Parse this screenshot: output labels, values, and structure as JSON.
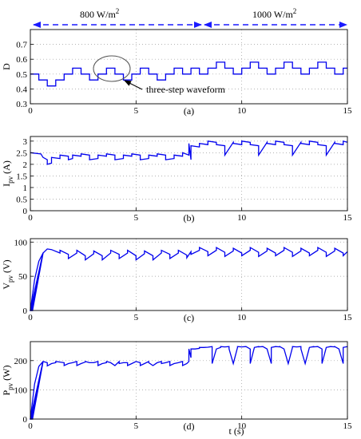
{
  "annotations": {
    "irr1": "800 W/m",
    "irr2": "1000 W/m",
    "sup": "2",
    "wave_note": "three-step waveform"
  },
  "colors": {
    "series": "#0000ee",
    "arrow": "#1a1aff",
    "grid": "#9a9a9a"
  },
  "chart_data": [
    {
      "type": "line",
      "panel": "(a)",
      "ylabel": "D",
      "xlim": [
        0,
        15
      ],
      "ylim": [
        0.3,
        0.8
      ],
      "xticks": [
        "0",
        "5",
        "10",
        "15"
      ],
      "yticks": [
        "0.3",
        "0.4",
        "0.5",
        "0.6",
        "0.7"
      ],
      "grid": true,
      "x": [
        0.0,
        0.4,
        0.4,
        0.8,
        0.8,
        1.2,
        1.2,
        1.6,
        1.6,
        2.0,
        2.0,
        2.4,
        2.4,
        2.8,
        2.8,
        3.2,
        3.2,
        3.6,
        3.6,
        4.0,
        4.0,
        4.4,
        4.4,
        4.8,
        4.8,
        5.2,
        5.2,
        5.6,
        5.6,
        6.0,
        6.0,
        6.4,
        6.4,
        6.8,
        6.8,
        7.2,
        7.2,
        7.6,
        7.6,
        8.0,
        8.0,
        8.4,
        8.4,
        8.8,
        8.8,
        9.2,
        9.2,
        9.6,
        9.6,
        10.0,
        10.0,
        10.4,
        10.4,
        10.8,
        10.8,
        11.2,
        11.2,
        11.6,
        11.6,
        12.0,
        12.0,
        12.4,
        12.4,
        12.8,
        12.8,
        13.2,
        13.2,
        13.6,
        13.6,
        14.0,
        14.0,
        14.4,
        14.4,
        14.8,
        14.8,
        15.0
      ],
      "y": [
        0.5,
        0.5,
        0.46,
        0.46,
        0.42,
        0.42,
        0.46,
        0.46,
        0.5,
        0.5,
        0.54,
        0.54,
        0.5,
        0.5,
        0.46,
        0.46,
        0.5,
        0.5,
        0.54,
        0.54,
        0.5,
        0.5,
        0.46,
        0.46,
        0.5,
        0.5,
        0.54,
        0.54,
        0.5,
        0.5,
        0.46,
        0.46,
        0.5,
        0.5,
        0.54,
        0.54,
        0.5,
        0.5,
        0.54,
        0.54,
        0.5,
        0.5,
        0.54,
        0.54,
        0.58,
        0.58,
        0.54,
        0.54,
        0.5,
        0.5,
        0.54,
        0.54,
        0.58,
        0.58,
        0.54,
        0.54,
        0.5,
        0.5,
        0.54,
        0.54,
        0.58,
        0.58,
        0.54,
        0.54,
        0.5,
        0.5,
        0.54,
        0.54,
        0.58,
        0.58,
        0.54,
        0.54,
        0.5,
        0.5,
        0.54,
        0.54
      ]
    },
    {
      "type": "line",
      "panel": "(b)",
      "ylabel": "I",
      "ylabel_sub": "pv",
      "ylabel_unit": "(A)",
      "xlim": [
        0,
        15
      ],
      "ylim": [
        0,
        3.2
      ],
      "xticks": [
        "0",
        "5",
        "10",
        "15"
      ],
      "yticks": [
        "0",
        "0.5",
        "1",
        "1.5",
        "2",
        "2.5",
        "3"
      ],
      "grid": true,
      "x": [
        0.0,
        0.5,
        0.6,
        0.8,
        0.8,
        1.0,
        1.0,
        1.4,
        1.4,
        1.8,
        1.8,
        2.0,
        2.0,
        2.4,
        2.4,
        2.8,
        2.8,
        3.2,
        3.2,
        3.6,
        3.6,
        4.0,
        4.0,
        4.4,
        4.4,
        4.8,
        4.8,
        5.2,
        5.2,
        5.6,
        5.6,
        6.0,
        6.0,
        6.4,
        6.4,
        6.8,
        6.8,
        7.2,
        7.2,
        7.5,
        7.5,
        7.6,
        7.6,
        8.0,
        8.0,
        8.4,
        8.4,
        8.8,
        8.8,
        9.2,
        9.2,
        9.6,
        9.6,
        10.0,
        10.0,
        10.4,
        10.4,
        10.8,
        10.8,
        11.2,
        11.2,
        11.6,
        11.6,
        12.0,
        12.0,
        12.4,
        12.4,
        12.8,
        12.8,
        13.2,
        13.2,
        13.6,
        13.6,
        14.0,
        14.0,
        14.4,
        14.4,
        14.8,
        14.8,
        15.0
      ],
      "y": [
        2.5,
        2.45,
        2.3,
        2.2,
        2.0,
        2.05,
        2.3,
        2.25,
        2.4,
        2.35,
        2.2,
        2.25,
        2.4,
        2.35,
        2.45,
        2.4,
        2.2,
        2.25,
        2.4,
        2.35,
        2.45,
        2.4,
        2.2,
        2.25,
        2.4,
        2.35,
        2.45,
        2.4,
        2.2,
        2.25,
        2.4,
        2.35,
        2.45,
        2.4,
        2.2,
        2.25,
        2.4,
        2.35,
        2.5,
        2.4,
        2.9,
        2.2,
        2.8,
        2.75,
        2.9,
        2.85,
        3.0,
        2.95,
        2.85,
        2.8,
        2.4,
        2.95,
        2.9,
        2.85,
        3.0,
        2.95,
        2.85,
        2.8,
        2.4,
        2.95,
        2.9,
        2.85,
        3.0,
        2.95,
        2.85,
        2.8,
        2.4,
        2.95,
        2.9,
        2.85,
        3.0,
        2.95,
        2.85,
        2.8,
        2.4,
        2.95,
        2.9,
        2.85,
        3.0,
        2.95
      ]
    },
    {
      "type": "line",
      "panel": "(c)",
      "ylabel": "V",
      "ylabel_sub": "pv",
      "ylabel_unit": "(V)",
      "xlim": [
        0,
        15
      ],
      "ylim": [
        0,
        105
      ],
      "xticks": [
        "0",
        "5",
        "10",
        "15"
      ],
      "yticks": [
        "0",
        "50",
        "100"
      ],
      "grid": true,
      "x": [
        0.0,
        0.2,
        0.4,
        0.6,
        0.8,
        1.0,
        1.4,
        1.4,
        1.8,
        1.8,
        2.2,
        2.2,
        2.6,
        2.6,
        3.0,
        3.0,
        3.4,
        3.4,
        3.8,
        3.8,
        4.2,
        4.2,
        4.6,
        4.6,
        5.0,
        5.0,
        5.4,
        5.4,
        5.8,
        5.8,
        6.2,
        6.2,
        6.6,
        6.6,
        7.0,
        7.0,
        7.4,
        7.4,
        7.6,
        7.6,
        8.0,
        8.0,
        8.4,
        8.4,
        8.8,
        8.8,
        9.2,
        9.2,
        9.6,
        9.6,
        10.0,
        10.0,
        10.4,
        10.4,
        10.8,
        10.8,
        11.2,
        11.2,
        11.6,
        11.6,
        12.0,
        12.0,
        12.4,
        12.4,
        12.8,
        12.8,
        13.2,
        13.2,
        13.6,
        13.6,
        14.0,
        14.0,
        14.4,
        14.4,
        14.8,
        14.8,
        15.0
      ],
      "y": [
        0,
        45,
        72,
        84,
        90,
        89,
        84,
        88,
        82,
        76,
        84,
        88,
        80,
        74,
        83,
        87,
        80,
        74,
        84,
        88,
        82,
        76,
        84,
        88,
        80,
        74,
        83,
        87,
        80,
        74,
        84,
        88,
        82,
        76,
        84,
        88,
        81,
        77,
        86,
        82,
        88,
        92,
        86,
        80,
        88,
        92,
        85,
        79,
        87,
        91,
        84,
        80,
        88,
        92,
        85,
        79,
        87,
        91,
        84,
        80,
        88,
        92,
        85,
        79,
        87,
        91,
        84,
        80,
        88,
        92,
        85,
        79,
        87,
        91,
        84,
        80,
        86
      ]
    },
    {
      "type": "line",
      "panel": "(d)",
      "ylabel": "P",
      "ylabel_sub": "pv",
      "ylabel_unit": "(W)",
      "xlabel": "t (s)",
      "xlim": [
        0,
        15
      ],
      "ylim": [
        0,
        265
      ],
      "xticks": [
        "0",
        "5",
        "10",
        "15"
      ],
      "yticks": [
        "0",
        "100",
        "200"
      ],
      "grid": true,
      "x": [
        0.0,
        0.2,
        0.4,
        0.6,
        0.8,
        0.8,
        1.0,
        1.2,
        1.2,
        1.4,
        1.6,
        1.6,
        1.8,
        2.0,
        2.2,
        2.2,
        2.4,
        2.6,
        2.6,
        2.8,
        3.0,
        3.2,
        3.2,
        3.4,
        3.6,
        3.6,
        3.8,
        4.0,
        4.2,
        4.2,
        4.4,
        4.6,
        4.6,
        4.8,
        5.0,
        5.2,
        5.2,
        5.4,
        5.6,
        5.6,
        5.8,
        6.0,
        6.2,
        6.2,
        6.4,
        6.6,
        6.6,
        6.8,
        7.0,
        7.2,
        7.2,
        7.4,
        7.5,
        7.5,
        7.6,
        7.6,
        7.8,
        8.0,
        8.0,
        8.2,
        8.4,
        8.6,
        8.6,
        8.8,
        9.0,
        9.0,
        9.2,
        9.4,
        9.4,
        9.6,
        9.8,
        9.8,
        10.0,
        10.2,
        10.4,
        10.4,
        10.6,
        10.8,
        10.8,
        11.0,
        11.2,
        11.4,
        11.4,
        11.6,
        11.8,
        11.8,
        12.0,
        12.2,
        12.4,
        12.4,
        12.6,
        12.8,
        12.8,
        13.0,
        13.2,
        13.4,
        13.4,
        13.6,
        13.8,
        13.8,
        14.0,
        14.2,
        14.4,
        14.4,
        14.6,
        14.8,
        14.8,
        15.0
      ],
      "y": [
        0,
        120,
        180,
        197,
        193,
        182,
        190,
        193,
        197,
        195,
        193,
        183,
        190,
        193,
        197,
        183,
        190,
        195,
        197,
        193,
        193,
        197,
        183,
        190,
        193,
        197,
        193,
        183,
        197,
        190,
        193,
        193,
        183,
        190,
        197,
        193,
        183,
        190,
        197,
        193,
        183,
        193,
        197,
        190,
        193,
        197,
        183,
        190,
        193,
        197,
        183,
        190,
        197,
        240,
        210,
        240,
        240,
        242,
        245,
        245,
        246,
        248,
        190,
        240,
        245,
        248,
        247,
        248,
        240,
        190,
        245,
        248,
        247,
        248,
        240,
        190,
        245,
        248,
        247,
        248,
        240,
        190,
        245,
        248,
        247,
        248,
        240,
        190,
        245,
        248,
        247,
        248,
        240,
        190,
        245,
        248,
        247,
        248,
        240,
        190,
        245,
        248,
        247,
        248,
        240,
        190,
        245,
        248
      ]
    }
  ]
}
